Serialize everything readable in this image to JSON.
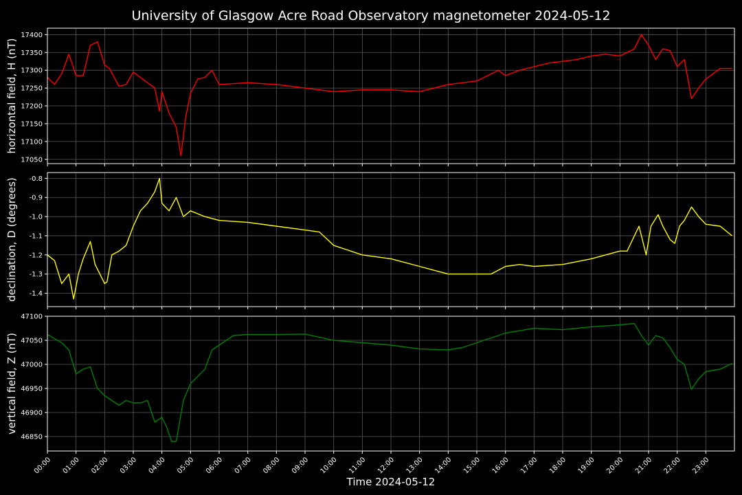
{
  "chart_data": {
    "type": "line",
    "title": "University of Glasgow Acre Road Observatory magnetometer 2024-05-12",
    "xlabel": "Time 2024-05-12",
    "x_ticks": [
      "00:00",
      "01:00",
      "02:00",
      "03:00",
      "04:00",
      "05:00",
      "06:00",
      "07:00",
      "08:00",
      "09:00",
      "10:00",
      "11:00",
      "12:00",
      "13:00",
      "14:00",
      "15:00",
      "16:00",
      "17:00",
      "18:00",
      "19:00",
      "20:00",
      "21:00",
      "22:00",
      "23:00"
    ],
    "xlim": [
      "00:00",
      "24:00"
    ],
    "grid": true,
    "panels": [
      {
        "ylabel": "horizontal field, H (nT)",
        "ylim": [
          17038,
          17418
        ],
        "y_ticks": [
          17050,
          17100,
          17150,
          17200,
          17250,
          17300,
          17350,
          17400
        ],
        "color": "#ff0000",
        "series": [
          {
            "x": [
              "00:00",
              "00:15",
              "00:30",
              "00:45",
              "01:00",
              "01:15",
              "01:30",
              "01:45",
              "02:00",
              "02:10",
              "02:30",
              "02:45",
              "03:00",
              "03:30",
              "03:45",
              "03:55",
              "04:00",
              "04:15",
              "04:30",
              "04:40",
              "04:50",
              "05:00",
              "05:15",
              "05:30",
              "05:45",
              "06:00",
              "07:00",
              "08:00",
              "09:00",
              "09:30",
              "10:00",
              "11:00",
              "12:00",
              "13:00",
              "14:00",
              "15:00",
              "15:45",
              "16:00",
              "16:30",
              "17:00",
              "17:30",
              "18:00",
              "18:30",
              "19:00",
              "19:30",
              "20:00",
              "20:30",
              "20:45",
              "21:00",
              "21:15",
              "21:30",
              "21:45",
              "22:00",
              "22:15",
              "22:30",
              "22:45",
              "23:00",
              "23:30",
              "23:55"
            ],
            "values": [
              17280,
              17260,
              17290,
              17345,
              17285,
              17285,
              17370,
              17380,
              17315,
              17305,
              17255,
              17260,
              17295,
              17265,
              17250,
              17185,
              17240,
              17180,
              17140,
              17060,
              17170,
              17235,
              17275,
              17280,
              17300,
              17260,
              17265,
              17260,
              17250,
              17245,
              17240,
              17245,
              17245,
              17240,
              17260,
              17270,
              17300,
              17285,
              17300,
              17310,
              17320,
              17325,
              17330,
              17340,
              17345,
              17340,
              17360,
              17400,
              17370,
              17330,
              17360,
              17355,
              17310,
              17330,
              17220,
              17250,
              17275,
              17305,
              17305
            ]
          }
        ]
      },
      {
        "ylabel": "declination, D (degrees)",
        "ylim": [
          -1.47,
          -0.77
        ],
        "y_ticks": [
          -1.4,
          -1.3,
          -1.2,
          -1.1,
          -1.0,
          -0.9,
          -0.8
        ],
        "color": "#ffff00",
        "series": [
          {
            "x": [
              "00:00",
              "00:15",
              "00:30",
              "00:45",
              "00:55",
              "01:05",
              "01:15",
              "01:30",
              "01:40",
              "01:50",
              "02:00",
              "02:05",
              "02:15",
              "02:30",
              "02:45",
              "03:00",
              "03:15",
              "03:30",
              "03:45",
              "03:55",
              "04:00",
              "04:15",
              "04:30",
              "04:45",
              "05:00",
              "05:30",
              "06:00",
              "07:00",
              "08:00",
              "09:00",
              "09:30",
              "10:00",
              "11:00",
              "12:00",
              "13:00",
              "13:30",
              "14:00",
              "15:00",
              "15:30",
              "16:00",
              "16:30",
              "17:00",
              "18:00",
              "19:00",
              "20:00",
              "20:15",
              "20:40",
              "20:55",
              "21:05",
              "21:20",
              "21:30",
              "21:45",
              "21:55",
              "22:05",
              "22:15",
              "22:30",
              "22:45",
              "23:00",
              "23:30",
              "23:55"
            ],
            "values": [
              -1.2,
              -1.23,
              -1.35,
              -1.3,
              -1.43,
              -1.3,
              -1.22,
              -1.13,
              -1.25,
              -1.3,
              -1.35,
              -1.34,
              -1.2,
              -1.18,
              -1.15,
              -1.05,
              -0.97,
              -0.93,
              -0.87,
              -0.8,
              -0.93,
              -0.97,
              -0.9,
              -1.0,
              -0.97,
              -1.0,
              -1.02,
              -1.03,
              -1.05,
              -1.07,
              -1.08,
              -1.15,
              -1.2,
              -1.22,
              -1.26,
              -1.28,
              -1.3,
              -1.3,
              -1.3,
              -1.26,
              -1.25,
              -1.26,
              -1.25,
              -1.22,
              -1.18,
              -1.18,
              -1.05,
              -1.2,
              -1.05,
              -0.99,
              -1.05,
              -1.12,
              -1.14,
              -1.05,
              -1.02,
              -0.95,
              -1.0,
              -1.04,
              -1.05,
              -1.1
            ]
          }
        ]
      },
      {
        "ylabel": "vertical field, Z (nT)",
        "ylim": [
          46820,
          47100
        ],
        "y_ticks": [
          46850,
          46900,
          46950,
          47000,
          47050,
          47100
        ],
        "color": "#008000",
        "series": [
          {
            "x": [
              "00:00",
              "00:30",
              "00:45",
              "01:00",
              "01:15",
              "01:30",
              "01:45",
              "02:00",
              "02:30",
              "02:45",
              "03:00",
              "03:15",
              "03:30",
              "03:45",
              "04:00",
              "04:10",
              "04:20",
              "04:30",
              "04:45",
              "05:00",
              "05:30",
              "05:45",
              "06:00",
              "06:30",
              "07:00",
              "08:00",
              "09:00",
              "10:00",
              "11:00",
              "12:00",
              "13:00",
              "14:00",
              "14:30",
              "15:00",
              "15:30",
              "16:00",
              "17:00",
              "18:00",
              "19:00",
              "20:00",
              "20:30",
              "20:45",
              "21:00",
              "21:15",
              "21:30",
              "21:45",
              "22:00",
              "22:15",
              "22:30",
              "22:45",
              "23:00",
              "23:30",
              "23:55"
            ],
            "values": [
              47062,
              47045,
              47030,
              46980,
              46990,
              46995,
              46950,
              46935,
              46915,
              46925,
              46920,
              46920,
              46925,
              46880,
              46890,
              46870,
              46840,
              46840,
              46925,
              46960,
              46990,
              47030,
              47040,
              47060,
              47062,
              47062,
              47063,
              47050,
              47045,
              47040,
              47032,
              47030,
              47035,
              47045,
              47055,
              47065,
              47075,
              47072,
              47078,
              47082,
              47085,
              47060,
              47040,
              47060,
              47055,
              47035,
              47010,
              47000,
              46948,
              46970,
              46985,
              46990,
              47002
            ]
          }
        ]
      }
    ]
  }
}
